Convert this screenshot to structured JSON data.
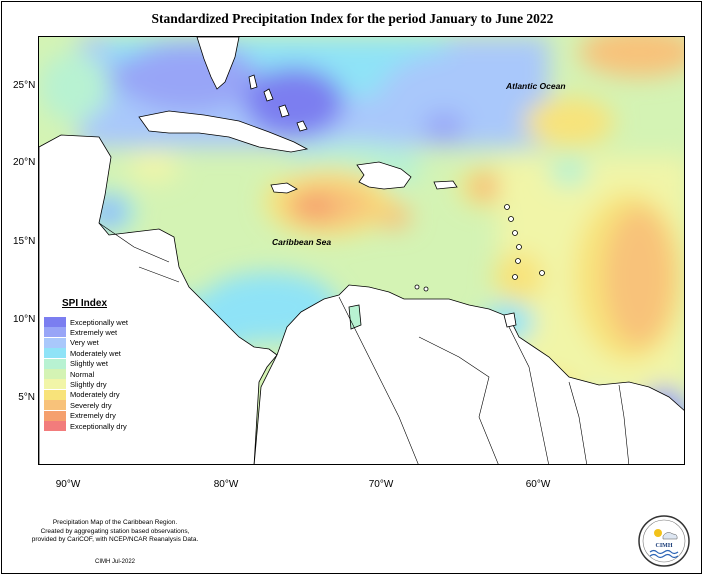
{
  "title": "Standardized Precipitation Index for the period January to June 2022",
  "lat_labels": [
    "25°N",
    "20°N",
    "15°N",
    "10°N",
    "5°N"
  ],
  "lon_labels": [
    "90°W",
    "80°W",
    "70°W",
    "60°W"
  ],
  "ocean_labels": {
    "atlantic": "Atlantic Ocean",
    "caribbean": "Caribbean Sea"
  },
  "legend": {
    "title": "SPI Index",
    "items": [
      {
        "label": "Exceptionally wet",
        "color": "#7b7ef0"
      },
      {
        "label": "Extremely wet",
        "color": "#98a5f7"
      },
      {
        "label": "Very wet",
        "color": "#a9c8fb"
      },
      {
        "label": "Moderately wet",
        "color": "#8fe3f7"
      },
      {
        "label": "Slightly wet",
        "color": "#b8f2d2"
      },
      {
        "label": "Normal",
        "color": "#d4f3b4"
      },
      {
        "label": "Slightly dry",
        "color": "#f1f5a8"
      },
      {
        "label": "Moderately dry",
        "color": "#f8e37a"
      },
      {
        "label": "Severely dry",
        "color": "#f8c27a"
      },
      {
        "label": "Extremely dry",
        "color": "#f5a06e"
      },
      {
        "label": "Exceptionally dry",
        "color": "#f27c7c"
      }
    ]
  },
  "footnote": {
    "line1": "Precipitation Map of the Caribbean Region.",
    "line2": "Created by aggregating station based observations,",
    "line3": "provided by CariCOF, with NCEP/NCAR Reanalysis Data."
  },
  "credit": "CIMH Jul-2022",
  "logo_text": "CIMH"
}
